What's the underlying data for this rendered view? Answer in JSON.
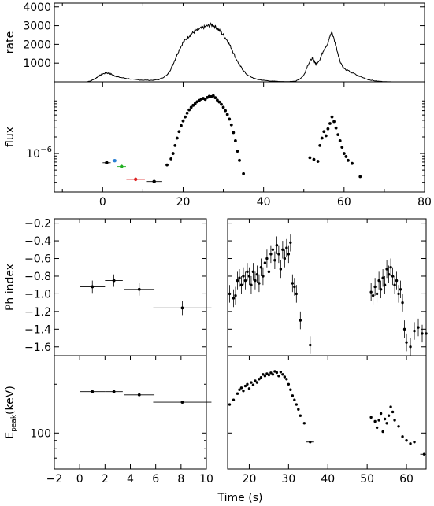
{
  "chart_data": [
    {
      "type": "line",
      "panel": "rate-lightcurve",
      "ylabel": "rate",
      "xlim": [
        -12,
        80
      ],
      "ylim": [
        0,
        4200
      ],
      "yticks": [
        1000,
        2000,
        3000,
        4000
      ],
      "yticklabels": [
        "1000",
        "2000",
        "3000",
        "4000"
      ],
      "series": [
        {
          "x": [
            -12,
            -8,
            -6,
            -4,
            -3,
            -2,
            -1,
            0,
            1,
            2,
            3,
            4,
            6,
            8,
            10,
            12,
            14,
            16,
            17,
            18,
            19,
            20,
            21,
            22,
            23,
            24,
            25,
            26,
            27,
            28,
            29,
            30,
            31,
            32,
            33,
            34,
            35,
            36,
            38,
            40,
            42,
            44,
            46,
            48,
            49,
            50,
            51,
            52,
            52.5,
            53,
            54,
            55,
            56,
            56.5,
            57,
            58,
            59,
            60,
            62,
            64,
            66,
            68,
            70,
            72,
            80
          ],
          "y": [
            0,
            0,
            0,
            0,
            50,
            150,
            300,
            420,
            480,
            420,
            320,
            250,
            180,
            120,
            90,
            80,
            120,
            350,
            700,
            1200,
            1700,
            2100,
            2350,
            2550,
            2700,
            2820,
            2900,
            2980,
            3050,
            2950,
            2750,
            2500,
            2200,
            1800,
            1300,
            900,
            600,
            350,
            150,
            80,
            40,
            20,
            10,
            40,
            150,
            350,
            900,
            1250,
            1150,
            950,
            1200,
            1750,
            2050,
            2450,
            2650,
            1900,
            1100,
            700,
            480,
            280,
            120,
            40,
            10,
            0,
            0
          ]
        }
      ]
    },
    {
      "type": "scatter",
      "panel": "flux-lightcurve",
      "ylabel": "flux",
      "yscale": "log",
      "ylim": [
        2e-07,
        2e-05
      ],
      "yticks": [
        1e-06
      ],
      "yticklabels": [
        "10"
      ],
      "yticklabel_exponent": "−6",
      "xlim": [
        -12,
        80
      ],
      "xticks": [
        0,
        20,
        40,
        60,
        80
      ],
      "xticklabels": [
        "0",
        "20",
        "40",
        "60",
        "80"
      ],
      "series": [
        {
          "x": [
            16,
            17,
            17.5,
            18,
            18.5,
            19,
            19.5,
            20,
            20.5,
            21,
            21.5,
            22,
            22.5,
            23,
            23.5,
            24,
            24.5,
            25,
            25.5,
            26,
            26.5,
            27,
            27.5,
            28,
            28.5,
            29,
            29.5,
            30,
            30.5,
            31,
            31.5,
            32,
            32.5,
            33,
            33.5,
            34,
            35,
            51.5,
            52.5,
            53.5,
            54,
            54.5,
            55,
            55.5,
            56,
            56.5,
            57,
            57.5,
            58,
            58.5,
            59,
            59.5,
            60,
            60.5,
            61,
            62,
            64
          ],
          "y": [
            6.2e-07,
            8e-07,
            1e-06,
            1.4e-06,
            1.9e-06,
            2.5e-06,
            3.2e-06,
            3.9e-06,
            4.6e-06,
            5.4e-06,
            6.2e-06,
            6.9e-06,
            7.5e-06,
            8.1e-06,
            8.7e-06,
            9.2e-06,
            9.7e-06,
            1e-05,
            9.6e-06,
            1.04e-05,
            1.09e-05,
            1.08e-05,
            1.12e-05,
            1.03e-05,
            9.3e-06,
            8.6e-06,
            7.8e-06,
            6.9e-06,
            6e-06,
            5.1e-06,
            4.2e-06,
            3.3e-06,
            2.4e-06,
            1.7e-06,
            1.1e-06,
            7.5e-07,
            4.3e-07,
            8.4e-07,
            7.8e-07,
            7.2e-07,
            1.4e-06,
            1.9e-06,
            2.5e-06,
            2.1e-06,
            2.8e-06,
            3.5e-06,
            4.6e-06,
            3.8e-06,
            2.9e-06,
            2.2e-06,
            1.7e-06,
            1.3e-06,
            1e-06,
            8.8e-07,
            7.5e-07,
            6.6e-07,
            3.8e-07
          ]
        },
        {
          "color": "#000000",
          "x": [
            1
          ],
          "y": [
            6.8e-07
          ],
          "xerr": [
            1
          ],
          "yerr_frac": [
            0.03
          ]
        },
        {
          "color": "#2a7fd4",
          "x": [
            3
          ],
          "y": [
            7.4e-07
          ],
          "xerr": [
            0.6
          ],
          "yerr_frac": [
            0.03
          ]
        },
        {
          "color": "#22b022",
          "x": [
            4.7
          ],
          "y": [
            5.8e-07
          ],
          "xerr": [
            1.1
          ],
          "yerr_frac": [
            0.03
          ]
        },
        {
          "color": "#dd2222",
          "x": [
            8.2
          ],
          "y": [
            3.4e-07
          ],
          "xerr": [
            2.3
          ],
          "yerr_frac": [
            0.03
          ]
        },
        {
          "color": "#000000",
          "x": [
            12.8
          ],
          "y": [
            3.1e-07
          ],
          "xerr": [
            2
          ],
          "yerr_frac": [
            0.03
          ]
        }
      ]
    },
    {
      "type": "scatter",
      "panel": "photon-index-early",
      "ylabel": "Ph index",
      "xlim": [
        -2,
        10
      ],
      "ylim": [
        -1.7,
        -0.15
      ],
      "yticks": [
        -1.6,
        -1.4,
        -1.2,
        -1.0,
        -0.8,
        -0.6,
        -0.4,
        -0.2
      ],
      "yticklabels": [
        "−1.6",
        "−1.4",
        "−1.2",
        "−1.0",
        "−0.8",
        "−0.6",
        "−0.4",
        "−0.2"
      ],
      "series": [
        {
          "x": [
            1,
            2.7,
            4.7,
            8.1
          ],
          "y": [
            -0.92,
            -0.85,
            -0.95,
            -1.16
          ],
          "xerr": [
            1,
            0.7,
            1.2,
            2.3
          ],
          "yerr": [
            0.07,
            0.07,
            0.07,
            0.08
          ]
        }
      ]
    },
    {
      "type": "scatter",
      "panel": "photon-index-late",
      "xlim": [
        14.5,
        65
      ],
      "ylim": [
        -1.7,
        -0.15
      ],
      "series": [
        {
          "x": [
            15,
            16,
            16.5,
            17,
            17.5,
            18,
            18.5,
            19,
            19.5,
            20,
            20.5,
            21,
            21.5,
            22,
            22.5,
            23,
            23.5,
            24,
            24.5,
            25,
            25.5,
            26,
            26.5,
            27,
            27.5,
            28,
            28.5,
            29,
            29.5,
            30,
            30.5,
            31,
            31.5,
            32,
            33,
            35.5,
            51,
            51.5,
            52,
            52.5,
            53,
            53.5,
            54,
            54.5,
            55,
            55.5,
            56,
            56.5,
            57,
            57.5,
            58,
            58.5,
            59,
            59.5,
            60,
            61,
            62,
            63,
            64,
            65
          ],
          "y": [
            -1.0,
            -1.05,
            -1.02,
            -0.85,
            -0.82,
            -0.9,
            -0.8,
            -0.85,
            -0.75,
            -0.8,
            -0.9,
            -0.75,
            -0.85,
            -0.78,
            -0.88,
            -0.7,
            -0.8,
            -0.65,
            -0.6,
            -0.75,
            -0.55,
            -0.5,
            -0.62,
            -0.45,
            -0.55,
            -0.72,
            -0.5,
            -0.6,
            -0.48,
            -0.55,
            -0.42,
            -0.88,
            -0.92,
            -1.0,
            -1.3,
            -1.58,
            -0.98,
            -1.02,
            -0.92,
            -1.0,
            -0.85,
            -0.95,
            -0.82,
            -0.9,
            -0.72,
            -0.78,
            -0.7,
            -0.8,
            -0.9,
            -0.85,
            -1.0,
            -0.95,
            -1.1,
            -1.4,
            -1.55,
            -1.6,
            -1.42,
            -1.38,
            -1.45,
            -1.45
          ],
          "yerr": [
            0.1
          ]
        }
      ]
    },
    {
      "type": "scatter",
      "panel": "epeak-early",
      "ylabel": "E_peak(keV)",
      "yscale": "log",
      "xlim": [
        -2,
        10
      ],
      "ylim": [
        60,
        300
      ],
      "yticks": [
        100
      ],
      "yticklabels": [
        "100"
      ],
      "xticks": [
        -2,
        0,
        2,
        4,
        6,
        8,
        10
      ],
      "xticklabels": [
        "−2",
        "0",
        "2",
        "4",
        "6",
        "8",
        "10"
      ],
      "series": [
        {
          "x": [
            1,
            2.7,
            4.7,
            8.1
          ],
          "y": [
            180,
            180,
            172,
            155
          ],
          "xerr": [
            1,
            0.7,
            1.2,
            2.3
          ]
        }
      ]
    },
    {
      "type": "scatter",
      "panel": "epeak-late",
      "yscale": "log",
      "xlim": [
        14.5,
        65
      ],
      "ylim": [
        60,
        300
      ],
      "xticks": [
        20,
        30,
        40,
        50,
        60
      ],
      "xticklabels": [
        "20",
        "30",
        "40",
        "50",
        "60"
      ],
      "series": [
        {
          "x": [
            15,
            16,
            17,
            17.5,
            18,
            18.5,
            19,
            19.5,
            20,
            20.5,
            21,
            21.5,
            22,
            22.5,
            23,
            23.5,
            24,
            24.5,
            25,
            25.5,
            26,
            26.5,
            27,
            27.5,
            28,
            28.5,
            29,
            29.5,
            30,
            30.5,
            31,
            31.5,
            32,
            32.5,
            33,
            34,
            35.5,
            51,
            52,
            52.5,
            53,
            53.5,
            54,
            54.5,
            55,
            55.5,
            56,
            56.5,
            57,
            58,
            59,
            60,
            61,
            62,
            64.5
          ],
          "y": [
            150,
            160,
            175,
            185,
            190,
            182,
            195,
            200,
            188,
            205,
            198,
            210,
            205,
            215,
            220,
            230,
            225,
            232,
            228,
            235,
            230,
            240,
            236,
            225,
            238,
            230,
            222,
            215,
            200,
            185,
            170,
            160,
            150,
            140,
            128,
            115,
            88,
            125,
            118,
            108,
            120,
            132,
            102,
            122,
            115,
            128,
            145,
            135,
            120,
            110,
            95,
            90,
            86,
            88,
            74
          ]
        }
      ]
    }
  ],
  "xlabel": "Time (s)"
}
